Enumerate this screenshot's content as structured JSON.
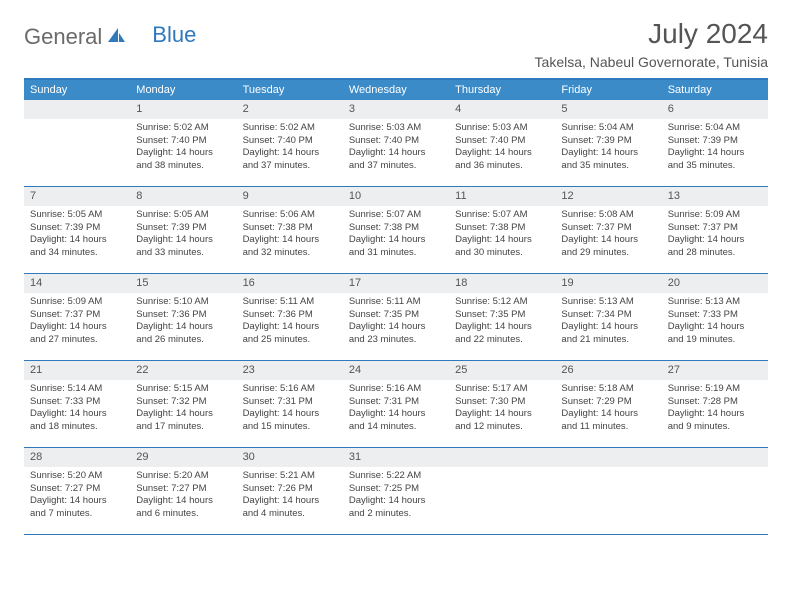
{
  "logo": {
    "gray": "General",
    "blue": "Blue"
  },
  "title": "July 2024",
  "location": "Takelsa, Nabeul Governorate, Tunisia",
  "header_bg": "#3b8bc9",
  "border_color": "#2f79bd",
  "daynum_bg": "#eceeef",
  "weekdays": [
    "Sunday",
    "Monday",
    "Tuesday",
    "Wednesday",
    "Thursday",
    "Friday",
    "Saturday"
  ],
  "weeks": [
    [
      {
        "n": "",
        "sr": "",
        "ss": "",
        "dl": ""
      },
      {
        "n": "1",
        "sr": "Sunrise: 5:02 AM",
        "ss": "Sunset: 7:40 PM",
        "dl": "Daylight: 14 hours and 38 minutes."
      },
      {
        "n": "2",
        "sr": "Sunrise: 5:02 AM",
        "ss": "Sunset: 7:40 PM",
        "dl": "Daylight: 14 hours and 37 minutes."
      },
      {
        "n": "3",
        "sr": "Sunrise: 5:03 AM",
        "ss": "Sunset: 7:40 PM",
        "dl": "Daylight: 14 hours and 37 minutes."
      },
      {
        "n": "4",
        "sr": "Sunrise: 5:03 AM",
        "ss": "Sunset: 7:40 PM",
        "dl": "Daylight: 14 hours and 36 minutes."
      },
      {
        "n": "5",
        "sr": "Sunrise: 5:04 AM",
        "ss": "Sunset: 7:39 PM",
        "dl": "Daylight: 14 hours and 35 minutes."
      },
      {
        "n": "6",
        "sr": "Sunrise: 5:04 AM",
        "ss": "Sunset: 7:39 PM",
        "dl": "Daylight: 14 hours and 35 minutes."
      }
    ],
    [
      {
        "n": "7",
        "sr": "Sunrise: 5:05 AM",
        "ss": "Sunset: 7:39 PM",
        "dl": "Daylight: 14 hours and 34 minutes."
      },
      {
        "n": "8",
        "sr": "Sunrise: 5:05 AM",
        "ss": "Sunset: 7:39 PM",
        "dl": "Daylight: 14 hours and 33 minutes."
      },
      {
        "n": "9",
        "sr": "Sunrise: 5:06 AM",
        "ss": "Sunset: 7:38 PM",
        "dl": "Daylight: 14 hours and 32 minutes."
      },
      {
        "n": "10",
        "sr": "Sunrise: 5:07 AM",
        "ss": "Sunset: 7:38 PM",
        "dl": "Daylight: 14 hours and 31 minutes."
      },
      {
        "n": "11",
        "sr": "Sunrise: 5:07 AM",
        "ss": "Sunset: 7:38 PM",
        "dl": "Daylight: 14 hours and 30 minutes."
      },
      {
        "n": "12",
        "sr": "Sunrise: 5:08 AM",
        "ss": "Sunset: 7:37 PM",
        "dl": "Daylight: 14 hours and 29 minutes."
      },
      {
        "n": "13",
        "sr": "Sunrise: 5:09 AM",
        "ss": "Sunset: 7:37 PM",
        "dl": "Daylight: 14 hours and 28 minutes."
      }
    ],
    [
      {
        "n": "14",
        "sr": "Sunrise: 5:09 AM",
        "ss": "Sunset: 7:37 PM",
        "dl": "Daylight: 14 hours and 27 minutes."
      },
      {
        "n": "15",
        "sr": "Sunrise: 5:10 AM",
        "ss": "Sunset: 7:36 PM",
        "dl": "Daylight: 14 hours and 26 minutes."
      },
      {
        "n": "16",
        "sr": "Sunrise: 5:11 AM",
        "ss": "Sunset: 7:36 PM",
        "dl": "Daylight: 14 hours and 25 minutes."
      },
      {
        "n": "17",
        "sr": "Sunrise: 5:11 AM",
        "ss": "Sunset: 7:35 PM",
        "dl": "Daylight: 14 hours and 23 minutes."
      },
      {
        "n": "18",
        "sr": "Sunrise: 5:12 AM",
        "ss": "Sunset: 7:35 PM",
        "dl": "Daylight: 14 hours and 22 minutes."
      },
      {
        "n": "19",
        "sr": "Sunrise: 5:13 AM",
        "ss": "Sunset: 7:34 PM",
        "dl": "Daylight: 14 hours and 21 minutes."
      },
      {
        "n": "20",
        "sr": "Sunrise: 5:13 AM",
        "ss": "Sunset: 7:33 PM",
        "dl": "Daylight: 14 hours and 19 minutes."
      }
    ],
    [
      {
        "n": "21",
        "sr": "Sunrise: 5:14 AM",
        "ss": "Sunset: 7:33 PM",
        "dl": "Daylight: 14 hours and 18 minutes."
      },
      {
        "n": "22",
        "sr": "Sunrise: 5:15 AM",
        "ss": "Sunset: 7:32 PM",
        "dl": "Daylight: 14 hours and 17 minutes."
      },
      {
        "n": "23",
        "sr": "Sunrise: 5:16 AM",
        "ss": "Sunset: 7:31 PM",
        "dl": "Daylight: 14 hours and 15 minutes."
      },
      {
        "n": "24",
        "sr": "Sunrise: 5:16 AM",
        "ss": "Sunset: 7:31 PM",
        "dl": "Daylight: 14 hours and 14 minutes."
      },
      {
        "n": "25",
        "sr": "Sunrise: 5:17 AM",
        "ss": "Sunset: 7:30 PM",
        "dl": "Daylight: 14 hours and 12 minutes."
      },
      {
        "n": "26",
        "sr": "Sunrise: 5:18 AM",
        "ss": "Sunset: 7:29 PM",
        "dl": "Daylight: 14 hours and 11 minutes."
      },
      {
        "n": "27",
        "sr": "Sunrise: 5:19 AM",
        "ss": "Sunset: 7:28 PM",
        "dl": "Daylight: 14 hours and 9 minutes."
      }
    ],
    [
      {
        "n": "28",
        "sr": "Sunrise: 5:20 AM",
        "ss": "Sunset: 7:27 PM",
        "dl": "Daylight: 14 hours and 7 minutes."
      },
      {
        "n": "29",
        "sr": "Sunrise: 5:20 AM",
        "ss": "Sunset: 7:27 PM",
        "dl": "Daylight: 14 hours and 6 minutes."
      },
      {
        "n": "30",
        "sr": "Sunrise: 5:21 AM",
        "ss": "Sunset: 7:26 PM",
        "dl": "Daylight: 14 hours and 4 minutes."
      },
      {
        "n": "31",
        "sr": "Sunrise: 5:22 AM",
        "ss": "Sunset: 7:25 PM",
        "dl": "Daylight: 14 hours and 2 minutes."
      },
      {
        "n": "",
        "sr": "",
        "ss": "",
        "dl": ""
      },
      {
        "n": "",
        "sr": "",
        "ss": "",
        "dl": ""
      },
      {
        "n": "",
        "sr": "",
        "ss": "",
        "dl": ""
      }
    ]
  ]
}
